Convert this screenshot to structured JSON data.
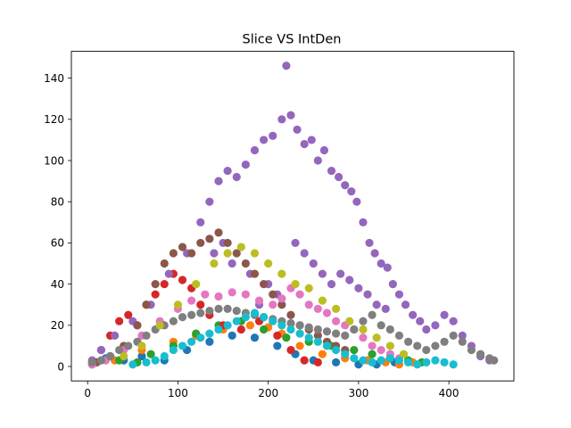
{
  "chart_data": {
    "type": "scatter",
    "title": "Slice VS IntDen",
    "xlabel": "",
    "ylabel": "",
    "xlim": [
      -18,
      472
    ],
    "ylim": [
      -7,
      153
    ],
    "xticks": [
      "0",
      "100",
      "200",
      "300",
      "400"
    ],
    "yticks": [
      "0",
      "20",
      "40",
      "60",
      "80",
      "100",
      "120",
      "140"
    ],
    "grid": false,
    "legend": "none",
    "marker_radius_note": "filled circles",
    "series": [
      {
        "color": "#1f77b4",
        "points": [
          [
            5,
            2
          ],
          [
            20,
            4
          ],
          [
            40,
            3
          ],
          [
            60,
            5
          ],
          [
            85,
            3
          ],
          [
            110,
            8
          ],
          [
            135,
            12
          ],
          [
            160,
            15
          ],
          [
            185,
            14
          ],
          [
            210,
            10
          ],
          [
            230,
            6
          ],
          [
            250,
            3
          ],
          [
            275,
            2
          ],
          [
            300,
            1
          ],
          [
            320,
            1
          ],
          [
            340,
            2
          ]
        ]
      },
      {
        "color": "#ff7f0e",
        "points": [
          [
            30,
            3
          ],
          [
            60,
            8
          ],
          [
            95,
            12
          ],
          [
            120,
            15
          ],
          [
            150,
            18
          ],
          [
            180,
            20
          ],
          [
            200,
            19
          ],
          [
            215,
            16
          ],
          [
            235,
            10
          ],
          [
            260,
            6
          ],
          [
            285,
            4
          ],
          [
            310,
            3
          ],
          [
            330,
            2
          ],
          [
            345,
            1
          ],
          [
            360,
            2
          ]
        ]
      },
      {
        "color": "#2ca02c",
        "points": [
          [
            10,
            2
          ],
          [
            35,
            3
          ],
          [
            55,
            2
          ],
          [
            70,
            6
          ],
          [
            95,
            10
          ],
          [
            120,
            16
          ],
          [
            145,
            20
          ],
          [
            170,
            22
          ],
          [
            195,
            18
          ],
          [
            220,
            14
          ],
          [
            245,
            12
          ],
          [
            270,
            10
          ],
          [
            295,
            8
          ],
          [
            315,
            6
          ],
          [
            335,
            4
          ],
          [
            355,
            3
          ],
          [
            370,
            2
          ]
        ]
      },
      {
        "color": "#d62728",
        "points": [
          [
            5,
            1
          ],
          [
            15,
            8
          ],
          [
            25,
            15
          ],
          [
            35,
            22
          ],
          [
            45,
            25
          ],
          [
            55,
            20
          ],
          [
            65,
            30
          ],
          [
            75,
            35
          ],
          [
            85,
            40
          ],
          [
            95,
            45
          ],
          [
            105,
            42
          ],
          [
            115,
            38
          ],
          [
            125,
            30
          ],
          [
            135,
            25
          ],
          [
            150,
            20
          ],
          [
            170,
            18
          ],
          [
            190,
            22
          ],
          [
            210,
            15
          ],
          [
            225,
            8
          ],
          [
            240,
            3
          ],
          [
            255,
            2
          ]
        ]
      },
      {
        "color": "#9467bd",
        "points": [
          [
            5,
            3
          ],
          [
            15,
            8
          ],
          [
            30,
            15
          ],
          [
            50,
            22
          ],
          [
            70,
            30
          ],
          [
            90,
            45
          ],
          [
            110,
            55
          ],
          [
            125,
            70
          ],
          [
            135,
            80
          ],
          [
            145,
            90
          ],
          [
            155,
            95
          ],
          [
            165,
            92
          ],
          [
            175,
            98
          ],
          [
            185,
            105
          ],
          [
            195,
            110
          ],
          [
            205,
            112
          ],
          [
            215,
            120
          ],
          [
            220,
            146
          ],
          [
            225,
            122
          ],
          [
            232,
            115
          ],
          [
            240,
            108
          ],
          [
            248,
            110
          ],
          [
            255,
            100
          ],
          [
            262,
            105
          ],
          [
            270,
            95
          ],
          [
            278,
            92
          ],
          [
            285,
            88
          ],
          [
            292,
            85
          ],
          [
            298,
            80
          ],
          [
            305,
            70
          ],
          [
            312,
            60
          ],
          [
            318,
            55
          ],
          [
            325,
            50
          ],
          [
            332,
            48
          ],
          [
            338,
            40
          ],
          [
            345,
            35
          ],
          [
            352,
            30
          ],
          [
            360,
            25
          ],
          [
            368,
            22
          ],
          [
            375,
            18
          ],
          [
            385,
            20
          ],
          [
            395,
            25
          ],
          [
            405,
            22
          ],
          [
            415,
            15
          ],
          [
            425,
            10
          ],
          [
            435,
            5
          ],
          [
            445,
            3
          ],
          [
            230,
            60
          ],
          [
            240,
            55
          ],
          [
            250,
            50
          ],
          [
            260,
            45
          ],
          [
            270,
            40
          ],
          [
            280,
            45
          ],
          [
            290,
            42
          ],
          [
            300,
            38
          ],
          [
            310,
            35
          ],
          [
            320,
            30
          ],
          [
            330,
            28
          ],
          [
            150,
            60
          ],
          [
            140,
            55
          ],
          [
            160,
            50
          ],
          [
            180,
            45
          ],
          [
            200,
            40
          ],
          [
            210,
            35
          ],
          [
            190,
            30
          ]
        ]
      },
      {
        "color": "#8c564b",
        "points": [
          [
            10,
            2
          ],
          [
            25,
            5
          ],
          [
            40,
            10
          ],
          [
            55,
            20
          ],
          [
            65,
            30
          ],
          [
            75,
            40
          ],
          [
            85,
            50
          ],
          [
            95,
            55
          ],
          [
            105,
            58
          ],
          [
            115,
            55
          ],
          [
            125,
            60
          ],
          [
            135,
            62
          ],
          [
            145,
            65
          ],
          [
            155,
            60
          ],
          [
            165,
            55
          ],
          [
            175,
            50
          ],
          [
            185,
            45
          ],
          [
            195,
            40
          ],
          [
            205,
            35
          ],
          [
            215,
            30
          ],
          [
            225,
            25
          ],
          [
            235,
            20
          ],
          [
            245,
            18
          ],
          [
            255,
            15
          ],
          [
            265,
            12
          ],
          [
            275,
            10
          ],
          [
            285,
            8
          ]
        ]
      },
      {
        "color": "#e377c2",
        "points": [
          [
            5,
            1
          ],
          [
            20,
            3
          ],
          [
            40,
            8
          ],
          [
            60,
            15
          ],
          [
            80,
            22
          ],
          [
            100,
            28
          ],
          [
            115,
            32
          ],
          [
            130,
            35
          ],
          [
            145,
            34
          ],
          [
            160,
            36
          ],
          [
            175,
            35
          ],
          [
            190,
            32
          ],
          [
            205,
            30
          ],
          [
            215,
            33
          ],
          [
            225,
            38
          ],
          [
            235,
            35
          ],
          [
            245,
            30
          ],
          [
            255,
            28
          ],
          [
            265,
            26
          ],
          [
            275,
            22
          ],
          [
            285,
            20
          ],
          [
            295,
            18
          ],
          [
            305,
            14
          ],
          [
            315,
            10
          ],
          [
            325,
            8
          ],
          [
            335,
            6
          ],
          [
            345,
            4
          ]
        ]
      },
      {
        "color": "#7f7f7f",
        "points": [
          [
            5,
            2
          ],
          [
            15,
            3
          ],
          [
            25,
            5
          ],
          [
            35,
            8
          ],
          [
            45,
            10
          ],
          [
            55,
            12
          ],
          [
            65,
            15
          ],
          [
            75,
            18
          ],
          [
            85,
            20
          ],
          [
            95,
            22
          ],
          [
            105,
            24
          ],
          [
            115,
            25
          ],
          [
            125,
            26
          ],
          [
            135,
            27
          ],
          [
            145,
            28
          ],
          [
            155,
            28
          ],
          [
            165,
            27
          ],
          [
            175,
            26
          ],
          [
            185,
            25
          ],
          [
            195,
            24
          ],
          [
            205,
            23
          ],
          [
            215,
            22
          ],
          [
            225,
            21
          ],
          [
            235,
            20
          ],
          [
            245,
            19
          ],
          [
            255,
            18
          ],
          [
            265,
            17
          ],
          [
            275,
            16
          ],
          [
            285,
            15
          ],
          [
            295,
            18
          ],
          [
            305,
            22
          ],
          [
            315,
            25
          ],
          [
            325,
            20
          ],
          [
            335,
            18
          ],
          [
            345,
            15
          ],
          [
            355,
            12
          ],
          [
            365,
            10
          ],
          [
            375,
            8
          ],
          [
            385,
            10
          ],
          [
            395,
            12
          ],
          [
            405,
            15
          ],
          [
            415,
            12
          ],
          [
            425,
            8
          ],
          [
            435,
            6
          ],
          [
            445,
            4
          ],
          [
            450,
            3
          ]
        ]
      },
      {
        "color": "#bcbd22",
        "points": [
          [
            40,
            5
          ],
          [
            60,
            10
          ],
          [
            80,
            20
          ],
          [
            100,
            30
          ],
          [
            120,
            40
          ],
          [
            140,
            50
          ],
          [
            155,
            55
          ],
          [
            170,
            58
          ],
          [
            185,
            55
          ],
          [
            200,
            50
          ],
          [
            215,
            45
          ],
          [
            230,
            40
          ],
          [
            245,
            38
          ],
          [
            260,
            32
          ],
          [
            275,
            28
          ],
          [
            290,
            22
          ],
          [
            305,
            18
          ],
          [
            320,
            14
          ],
          [
            335,
            10
          ],
          [
            350,
            6
          ]
        ]
      },
      {
        "color": "#17becf",
        "points": [
          [
            50,
            1
          ],
          [
            65,
            2
          ],
          [
            75,
            3
          ],
          [
            85,
            5
          ],
          [
            95,
            8
          ],
          [
            105,
            10
          ],
          [
            115,
            12
          ],
          [
            125,
            14
          ],
          [
            135,
            16
          ],
          [
            145,
            18
          ],
          [
            155,
            20
          ],
          [
            165,
            22
          ],
          [
            175,
            24
          ],
          [
            185,
            26
          ],
          [
            195,
            24
          ],
          [
            205,
            22
          ],
          [
            215,
            20
          ],
          [
            225,
            18
          ],
          [
            235,
            16
          ],
          [
            245,
            14
          ],
          [
            255,
            12
          ],
          [
            265,
            10
          ],
          [
            275,
            8
          ],
          [
            285,
            6
          ],
          [
            295,
            4
          ],
          [
            305,
            3
          ],
          [
            315,
            2
          ],
          [
            325,
            3
          ],
          [
            335,
            4
          ],
          [
            345,
            3
          ],
          [
            355,
            2
          ],
          [
            365,
            1
          ],
          [
            375,
            2
          ],
          [
            385,
            3
          ],
          [
            395,
            2
          ],
          [
            405,
            1
          ]
        ]
      }
    ]
  }
}
